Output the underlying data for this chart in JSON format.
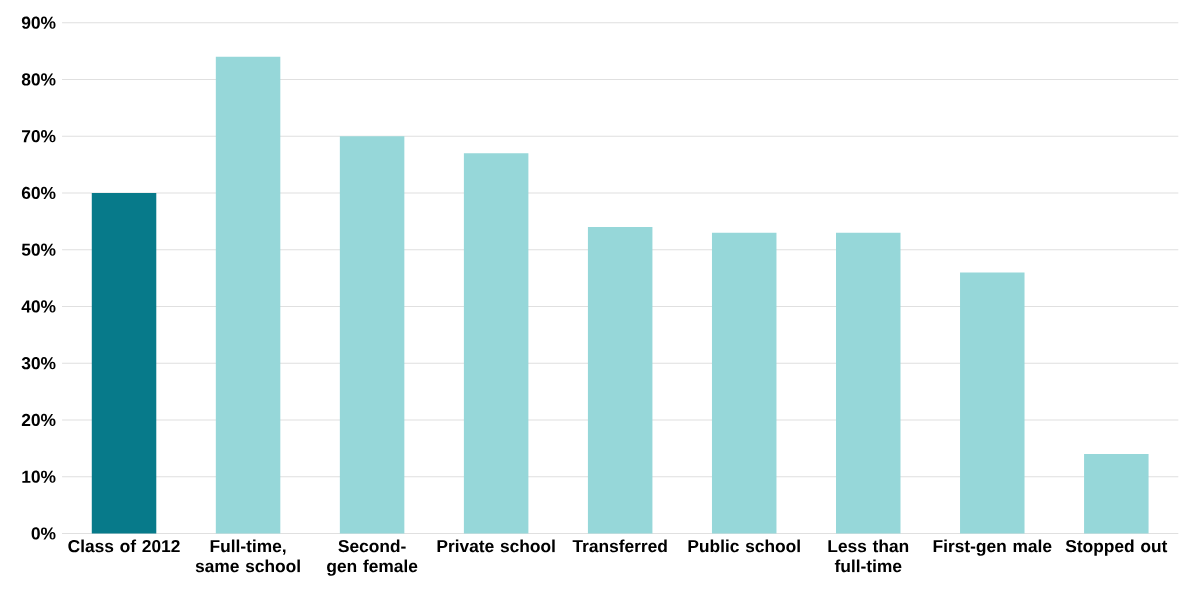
{
  "chart_data": {
    "type": "bar",
    "categories": [
      "Class of 2012",
      "Full-time, same school",
      "Second-gen female",
      "Private school",
      "Transferred",
      "Public school",
      "Less than full-time",
      "First-gen male",
      "Stopped out"
    ],
    "values": [
      60,
      84,
      70,
      67,
      54,
      53,
      53,
      46,
      14
    ],
    "colors": [
      "#077a8a",
      "#96d7d9",
      "#96d7d9",
      "#96d7d9",
      "#96d7d9",
      "#96d7d9",
      "#96d7d9",
      "#96d7d9",
      "#96d7d9"
    ],
    "ylim": [
      0,
      90
    ],
    "yticks": [
      {
        "value": 0,
        "label": "0%"
      },
      {
        "value": 10,
        "label": "10%"
      },
      {
        "value": 20,
        "label": "20%"
      },
      {
        "value": 30,
        "label": "30%"
      },
      {
        "value": 40,
        "label": "40%"
      },
      {
        "value": 50,
        "label": "50%"
      },
      {
        "value": 60,
        "label": "60%"
      },
      {
        "value": 70,
        "label": "70%"
      },
      {
        "value": 80,
        "label": "80%"
      },
      {
        "value": 90,
        "label": "90%"
      }
    ],
    "grid": "y"
  }
}
